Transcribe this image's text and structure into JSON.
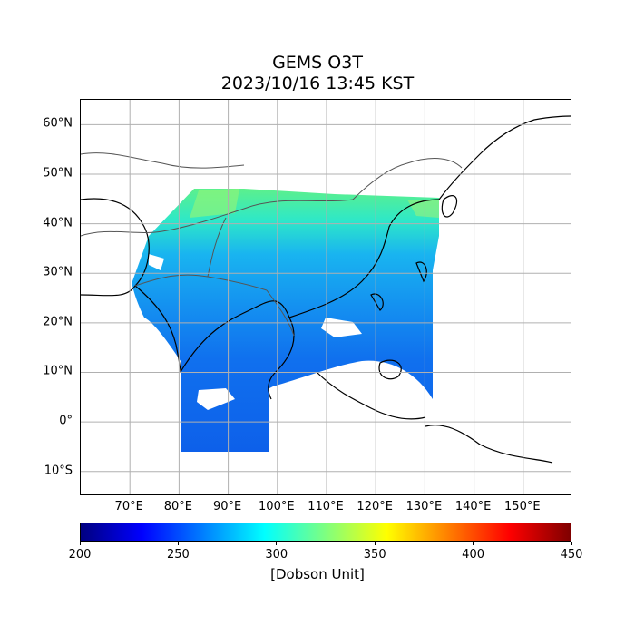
{
  "title": {
    "product": "GEMS O3T",
    "datetime": "2023/10/16 13:45 KST"
  },
  "map": {
    "lon_range": [
      60,
      160
    ],
    "lat_range": [
      -15,
      65
    ],
    "lat_ticks": [
      {
        "value": 60,
        "label": "60°N"
      },
      {
        "value": 50,
        "label": "50°N"
      },
      {
        "value": 40,
        "label": "40°N"
      },
      {
        "value": 30,
        "label": "30°N"
      },
      {
        "value": 20,
        "label": "20°N"
      },
      {
        "value": 10,
        "label": "10°N"
      },
      {
        "value": 0,
        "label": "0°"
      },
      {
        "value": -10,
        "label": "10°S"
      }
    ],
    "lon_ticks": [
      {
        "value": 70,
        "label": "70°E"
      },
      {
        "value": 80,
        "label": "80°E"
      },
      {
        "value": 90,
        "label": "90°E"
      },
      {
        "value": 100,
        "label": "100°E"
      },
      {
        "value": 110,
        "label": "110°E"
      },
      {
        "value": 120,
        "label": "120°E"
      },
      {
        "value": 130,
        "label": "130°E"
      },
      {
        "value": 140,
        "label": "140°E"
      },
      {
        "value": 150,
        "label": "150°E"
      }
    ],
    "gridlines": true,
    "data_swath_color_range": "cyan-green to blue"
  },
  "colorbar": {
    "min": 200,
    "max": 450,
    "colormap": "jet",
    "tick_labels": [
      "200",
      "250",
      "300",
      "350",
      "400",
      "450"
    ],
    "unit": "[Dobson Unit]",
    "colors": [
      "#00007f",
      "#0000ff",
      "#007fff",
      "#00ffff",
      "#7fff7f",
      "#ffff00",
      "#ff7f00",
      "#ff0000",
      "#7f0000"
    ]
  }
}
